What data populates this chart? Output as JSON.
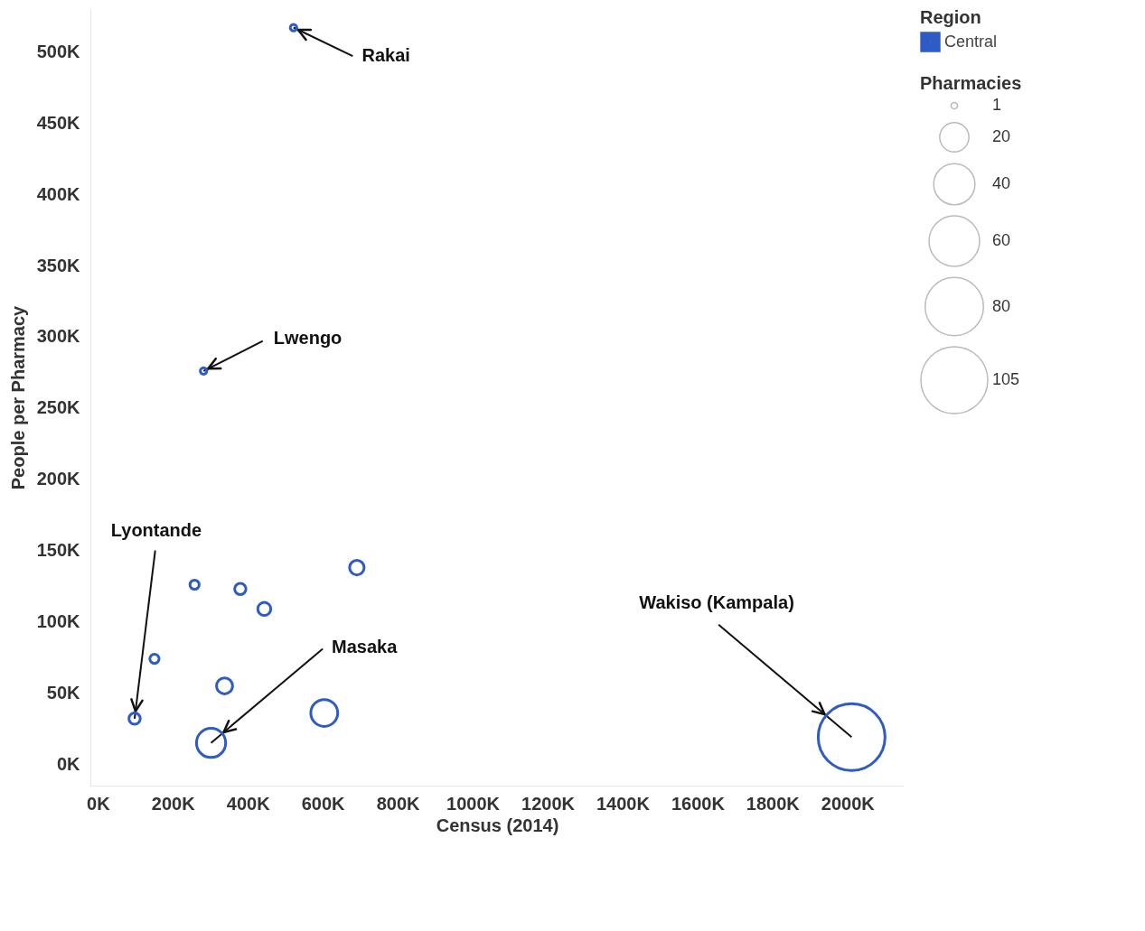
{
  "chart_data": {
    "type": "bubble",
    "xlabel": "Census (2014)",
    "ylabel": "People per Pharmacy",
    "legend_title": "Region",
    "legend": "top right",
    "grid": false,
    "marker": "circle",
    "xlim": [
      -20,
      2150
    ],
    "ylim": [
      -15,
      530
    ],
    "xticks": [
      {
        "value": 0,
        "label": "0K"
      },
      {
        "value": 200,
        "label": "200K"
      },
      {
        "value": 400,
        "label": "400K"
      },
      {
        "value": 600,
        "label": "600K"
      },
      {
        "value": 800,
        "label": "800K"
      },
      {
        "value": 1000,
        "label": "1000K"
      },
      {
        "value": 1200,
        "label": "1200K"
      },
      {
        "value": 1400,
        "label": "1400K"
      },
      {
        "value": 1600,
        "label": "1600K"
      },
      {
        "value": 1800,
        "label": "1800K"
      },
      {
        "value": 2000,
        "label": "2000K"
      }
    ],
    "yticks": [
      {
        "value": 0,
        "label": "0K"
      },
      {
        "value": 50,
        "label": "50K"
      },
      {
        "value": 100,
        "label": "100K"
      },
      {
        "value": 150,
        "label": "150K"
      },
      {
        "value": 200,
        "label": "200K"
      },
      {
        "value": 250,
        "label": "250K"
      },
      {
        "value": 300,
        "label": "300K"
      },
      {
        "value": 350,
        "label": "350K"
      },
      {
        "value": 400,
        "label": "400K"
      },
      {
        "value": 450,
        "label": "450K"
      },
      {
        "value": 500,
        "label": "500K"
      }
    ],
    "size_legend": [
      1,
      20,
      40,
      60,
      80,
      105
    ],
    "series": [
      {
        "name": "Central",
        "color": "#2f5bc4",
        "x": [
          522,
          282,
          98,
          151,
          258,
          380,
          444,
          691,
          338,
          604,
          302,
          2011
        ],
        "values": [
          517,
          276,
          32,
          74,
          126,
          123,
          109,
          138,
          55,
          36,
          15,
          19
        ],
        "sizes": [
          1,
          1,
          3,
          2,
          2,
          3,
          4,
          5,
          6,
          17,
          20,
          105
        ]
      }
    ],
    "annotations": [
      "Pharmacies",
      {
        "text": "Rakai",
        "x": 522,
        "y": 517
      },
      {
        "text": "Lwengo",
        "x": 282,
        "y": 276
      },
      {
        "text": "Lyontande",
        "x": 98,
        "y": 32
      },
      {
        "text": "Masaka",
        "x": 302,
        "y": 15
      },
      {
        "text": "Wakiso (Kampala)",
        "x": 2011,
        "y": 19
      }
    ]
  }
}
